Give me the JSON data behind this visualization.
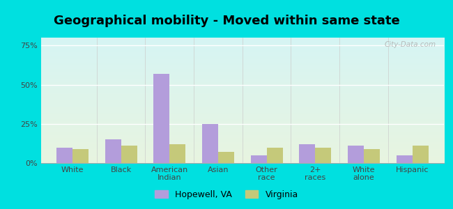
{
  "title": "Geographical mobility - Moved within same state",
  "categories": [
    "White",
    "Black",
    "American\nIndian",
    "Asian",
    "Other\nrace",
    "2+\nraces",
    "White\nalone",
    "Hispanic"
  ],
  "hopewell_values": [
    10,
    15,
    57,
    25,
    5,
    12,
    11,
    5
  ],
  "virginia_values": [
    9,
    11,
    12,
    7,
    10,
    10,
    9,
    11
  ],
  "hopewell_color": "#b39ddb",
  "virginia_color": "#c5c97a",
  "grad_top": "#d6f4f4",
  "grad_bottom": "#e8f5e0",
  "outer_background": "#00e0e0",
  "yticks": [
    0,
    25,
    50,
    75
  ],
  "ylim": [
    0,
    80
  ],
  "legend_labels": [
    "Hopewell, VA",
    "Virginia"
  ],
  "watermark": "City-Data.com",
  "title_fontsize": 13,
  "tick_fontsize": 8,
  "bar_width": 0.33
}
